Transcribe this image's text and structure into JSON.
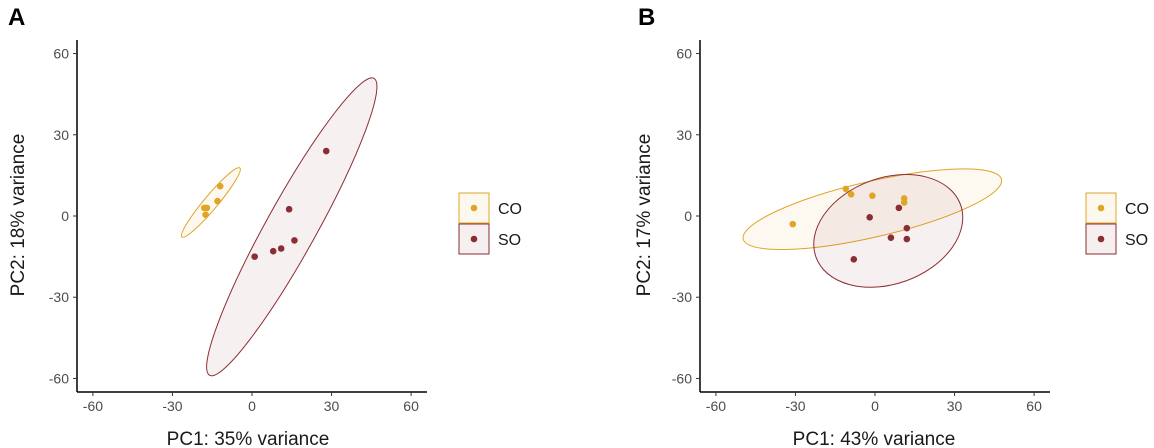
{
  "colors": {
    "CO": "#e0a526",
    "SO": "#8b2e33"
  },
  "chart_data": [
    {
      "type": "scatter",
      "panel": "A",
      "title": "",
      "xlabel": "PC1: 35% variance",
      "ylabel": "PC2: 18% variance",
      "xlim": [
        -66,
        66
      ],
      "ylim": [
        -65,
        65
      ],
      "xticks": [
        -60,
        -30,
        0,
        30,
        60
      ],
      "yticks": [
        -60,
        -30,
        0,
        30,
        60
      ],
      "legend": [
        "CO",
        "SO"
      ],
      "series": [
        {
          "name": "CO",
          "points": [
            [
              -17,
              3
            ],
            [
              -17.5,
              0.5
            ],
            [
              -12,
              11
            ],
            [
              -13,
              5.5
            ],
            [
              -18,
              3
            ]
          ]
        },
        {
          "name": "SO",
          "points": [
            [
              28,
              24
            ],
            [
              14,
              2.5
            ],
            [
              16,
              -9
            ],
            [
              11,
              -12
            ],
            [
              8,
              -13
            ],
            [
              1,
              -15
            ]
          ]
        }
      ],
      "ellipses": [
        {
          "group": "CO",
          "center": [
            -15.5,
            5
          ],
          "semi_major": 17,
          "semi_minor": 2.6,
          "angle_deg": 50
        },
        {
          "group": "SO",
          "center": [
            15,
            -4
          ],
          "semi_major": 64,
          "semi_minor": 9.5,
          "angle_deg": 61
        }
      ]
    },
    {
      "type": "scatter",
      "panel": "B",
      "title": "",
      "xlabel": "PC1: 43% variance",
      "ylabel": "PC2: 17% variance",
      "xlim": [
        -66,
        66
      ],
      "ylim": [
        -65,
        65
      ],
      "xticks": [
        -60,
        -30,
        0,
        30,
        60
      ],
      "yticks": [
        -60,
        -30,
        0,
        30,
        60
      ],
      "legend": [
        "CO",
        "SO"
      ],
      "series": [
        {
          "name": "CO",
          "points": [
            [
              -31,
              -3
            ],
            [
              -11,
              10
            ],
            [
              -9,
              8
            ],
            [
              -1,
              7.5
            ],
            [
              11,
              6.5
            ],
            [
              11,
              5
            ]
          ]
        },
        {
          "name": "SO",
          "points": [
            [
              -2,
              -0.5
            ],
            [
              9,
              3
            ],
            [
              12,
              -4.5
            ],
            [
              6,
              -8
            ],
            [
              12,
              -8.5
            ],
            [
              -8,
              -16
            ]
          ]
        }
      ],
      "ellipses": [
        {
          "group": "CO",
          "center": [
            -1,
            2.5
          ],
          "semi_major": 50,
          "semi_minor": 10.5,
          "angle_deg": 13
        },
        {
          "group": "SO",
          "center": [
            5,
            -5.5
          ],
          "semi_major": 29,
          "semi_minor": 20,
          "angle_deg": 20
        }
      ]
    }
  ]
}
